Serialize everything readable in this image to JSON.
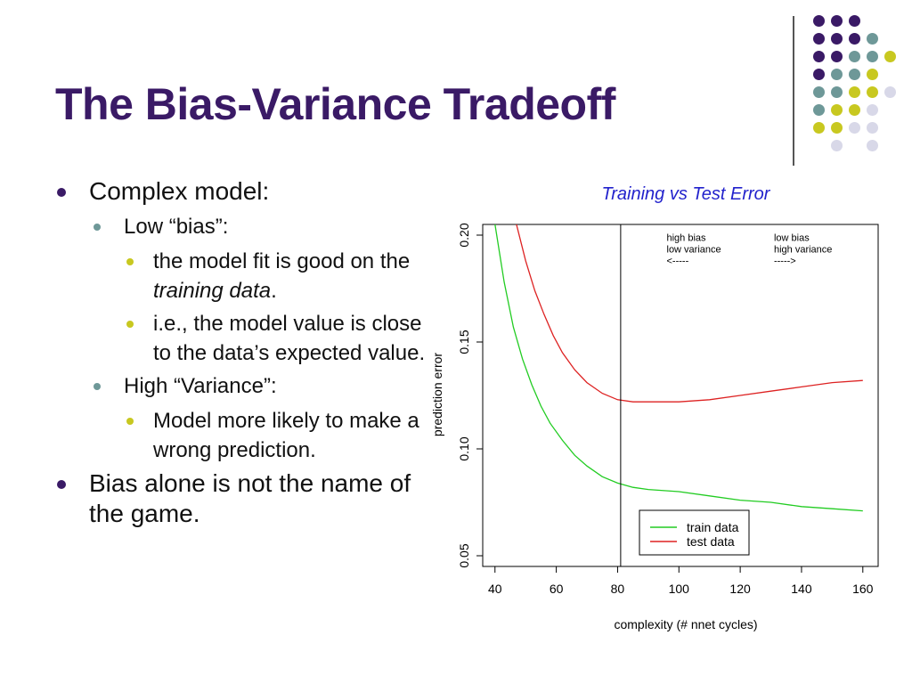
{
  "slide": {
    "title": "The Bias-Variance Tradeoff"
  },
  "bullets": {
    "b1": "Complex model:",
    "b1_1": "Low “bias”:",
    "b1_1_1_pre": "the model fit is good on the ",
    "b1_1_1_em": "training data",
    "b1_1_1_post": ".",
    "b1_1_2": "i.e., the model value is close to the data’s expected value.",
    "b1_2": "High “Variance”:",
    "b1_2_1": "Model more likely to make a wrong prediction.",
    "b2": "Bias alone is not the name of the game."
  },
  "decoration": {
    "dot_colors": {
      "purple": "#3a1a66",
      "teal": "#6e9898",
      "yellow": "#c8c820",
      "lavender": "#d8d8e8"
    },
    "dot_rows": [
      [
        "purple",
        "purple",
        "purple",
        "",
        ""
      ],
      [
        "purple",
        "purple",
        "purple",
        "teal",
        ""
      ],
      [
        "purple",
        "purple",
        "teal",
        "teal",
        "yellow"
      ],
      [
        "purple",
        "teal",
        "teal",
        "yellow",
        ""
      ],
      [
        "teal",
        "teal",
        "yellow",
        "yellow",
        "lavender"
      ],
      [
        "teal",
        "yellow",
        "yellow",
        "lavender",
        ""
      ],
      [
        "yellow",
        "yellow",
        "lavender",
        "lavender",
        ""
      ],
      [
        "",
        "lavender",
        "",
        "lavender",
        ""
      ]
    ]
  },
  "chart_data": {
    "type": "line",
    "title": "Training vs Test Error",
    "xlabel": "complexity (# nnet cycles)",
    "ylabel": "prediction error",
    "xlim": [
      36,
      165
    ],
    "ylim": [
      0.045,
      0.205
    ],
    "xticks": [
      40,
      60,
      80,
      100,
      120,
      140,
      160
    ],
    "xtick_labels": [
      "40",
      "60",
      "80",
      "100",
      "120",
      "140",
      "160"
    ],
    "yticks": [
      0.05,
      0.1,
      0.15,
      0.2
    ],
    "ytick_labels": [
      "0.05",
      "0.10",
      "0.15",
      "0.20"
    ],
    "vline_x": 81,
    "grid": false,
    "legend_position": "bottom-right",
    "colors": {
      "train": "#22cc22",
      "test": "#dd2222",
      "title": "#2222cc"
    },
    "series": [
      {
        "name": "train data",
        "color": "#22cc22",
        "x": [
          40,
          43,
          46,
          49,
          52,
          55,
          58,
          62,
          66,
          70,
          75,
          80,
          85,
          90,
          100,
          110,
          120,
          130,
          140,
          150,
          160
        ],
        "y": [
          0.205,
          0.178,
          0.157,
          0.142,
          0.13,
          0.12,
          0.112,
          0.104,
          0.097,
          0.092,
          0.087,
          0.084,
          0.082,
          0.081,
          0.08,
          0.078,
          0.076,
          0.075,
          0.073,
          0.072,
          0.071
        ]
      },
      {
        "name": "test data",
        "color": "#dd2222",
        "x": [
          47,
          50,
          53,
          56,
          59,
          62,
          66,
          70,
          75,
          80,
          85,
          90,
          95,
          100,
          110,
          120,
          130,
          140,
          150,
          160
        ],
        "y": [
          0.205,
          0.188,
          0.174,
          0.163,
          0.153,
          0.145,
          0.137,
          0.131,
          0.126,
          0.123,
          0.122,
          0.122,
          0.122,
          0.122,
          0.123,
          0.125,
          0.127,
          0.129,
          0.131,
          0.132
        ]
      }
    ],
    "annotations": [
      {
        "lines": [
          "high bias",
          "low variance",
          "<-----"
        ],
        "x": 96,
        "y": 0.199
      },
      {
        "lines": [
          "low bias",
          "high variance",
          "----->"
        ],
        "x": 131,
        "y": 0.199
      }
    ]
  }
}
